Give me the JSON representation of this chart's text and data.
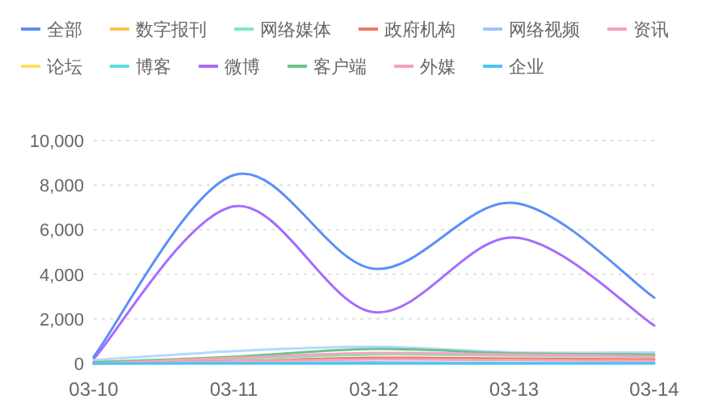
{
  "chart_data": {
    "type": "line",
    "categories": [
      "03-10",
      "03-11",
      "03-12",
      "03-13",
      "03-14"
    ],
    "ylim": [
      0,
      10000
    ],
    "yticks": [
      {
        "value": 0,
        "label": "0"
      },
      {
        "value": 2000,
        "label": "2,000"
      },
      {
        "value": 4000,
        "label": "4,000"
      },
      {
        "value": 6000,
        "label": "6,000"
      },
      {
        "value": 8000,
        "label": "8,000"
      },
      {
        "value": 10000,
        "label": "10,000"
      }
    ],
    "grid": "y",
    "legend": "top",
    "marker": "none",
    "line_style": "solid",
    "series": [
      {
        "name": "全部",
        "color": "#5b8ff9",
        "values": [
          300,
          8450,
          4250,
          7200,
          2950
        ]
      },
      {
        "name": "数字报刊",
        "color": "#ffc14d",
        "values": [
          null,
          null,
          null,
          null,
          null
        ]
      },
      {
        "name": "网络媒体",
        "color": "#84e6be",
        "values": [
          50,
          200,
          400,
          350,
          300
        ]
      },
      {
        "name": "政府机构",
        "color": "#f2756b",
        "values": [
          0,
          100,
          250,
          220,
          180
        ]
      },
      {
        "name": "网络视频",
        "color": "#a3c3ff",
        "values": [
          0,
          30,
          50,
          30,
          30
        ]
      },
      {
        "name": "资讯",
        "color": "#f7a3b6",
        "values": [
          0,
          90,
          180,
          150,
          120
        ]
      },
      {
        "name": "论坛",
        "color": "#ffe066",
        "values": [
          null,
          null,
          null,
          null,
          null
        ]
      },
      {
        "name": "博客",
        "color": "#5cdde0",
        "values": [
          0,
          10,
          10,
          10,
          10
        ]
      },
      {
        "name": "微博",
        "color": "#a66cff",
        "values": [
          200,
          7050,
          2300,
          5650,
          1700
        ]
      },
      {
        "color": "#b3d9ff",
        "values": [
          150,
          550,
          750,
          500,
          500
        ]
      },
      {
        "name": "客户端",
        "color": "#6cc38a",
        "values": [
          50,
          300,
          650,
          450,
          400
        ]
      },
      {
        "name": "外媒",
        "color": "#f5a3b5",
        "values": [
          0,
          250,
          470,
          400,
          320
        ]
      },
      {
        "name": "企业",
        "color": "#4cc3f5",
        "values": [
          0,
          0,
          0,
          0,
          0
        ]
      }
    ]
  }
}
